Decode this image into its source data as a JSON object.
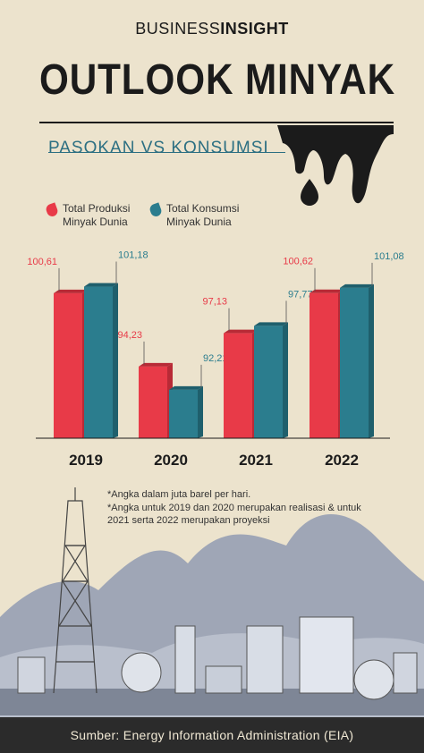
{
  "brand": {
    "part1": "BUSINESS",
    "part2": "INSIGHT"
  },
  "title": "OUTLOOK MINYAK",
  "subtitle": "PASOKAN VS KONSUMSI",
  "legend": [
    {
      "label": "Total Produksi Minyak Dunia",
      "color": "#e83a48"
    },
    {
      "label": "Total Konsumsi Minyak Dunia",
      "color": "#2b7d8e"
    }
  ],
  "footnotes": [
    "*Angka dalam juta barel per hari.",
    "*Angka untuk 2019 dan 2020 merupakan realisasi & untuk 2021 serta 2022 merupakan proyeksi"
  ],
  "source": "Sumber: Energy Information Administration (EIA)",
  "colors": {
    "background": "#ece3cd",
    "produksi": "#e83a48",
    "konsumsi": "#2b7d8e",
    "dark": "#1b1b1b"
  },
  "chart_data": {
    "type": "bar",
    "categories": [
      "2019",
      "2020",
      "2021",
      "2022"
    ],
    "series": [
      {
        "name": "Total Produksi Minyak Dunia",
        "values": [
          100.61,
          94.23,
          97.13,
          100.62
        ],
        "labels": [
          "100,61",
          "94,23",
          "97,13",
          "100,62"
        ]
      },
      {
        "name": "Total Konsumsi Minyak Dunia",
        "values": [
          101.18,
          92.21,
          97.77,
          101.08
        ],
        "labels": [
          "101,18",
          "92,21",
          "97,77",
          "101,08"
        ]
      }
    ],
    "title": "",
    "xlabel": "",
    "ylabel": "",
    "ylim": [
      88,
      102
    ],
    "grid": false,
    "legend": "top-left"
  }
}
